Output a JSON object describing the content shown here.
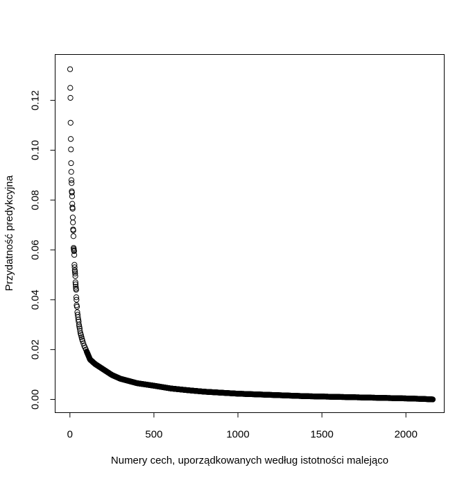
{
  "chart_data": {
    "type": "scatter",
    "title": "",
    "xlabel": "Numery cech, uporządkowanych według istotności malejąco",
    "ylabel": "Przydatność predykcyjna",
    "xlim": [
      -88,
      2228
    ],
    "ylim": [
      -0.0053,
      0.1384
    ],
    "x_ticks": [
      0,
      500,
      1000,
      1500,
      2000
    ],
    "x_tick_labels": [
      "0",
      "500",
      "1000",
      "1500",
      "2000"
    ],
    "y_ticks": [
      0.0,
      0.02,
      0.04,
      0.06,
      0.08,
      0.1,
      0.12
    ],
    "y_tick_labels": [
      "0.00",
      "0.02",
      "0.04",
      "0.06",
      "0.08",
      "0.10",
      "0.12"
    ],
    "grid": false,
    "legend": "none",
    "marker": "open-circle",
    "n_points": 2160,
    "leading_points": [
      [
        1,
        0.1325
      ],
      [
        2,
        0.125
      ],
      [
        3,
        0.121
      ],
      [
        4,
        0.111
      ],
      [
        5,
        0.1045
      ],
      [
        6,
        0.1003
      ],
      [
        7,
        0.0948
      ],
      [
        8,
        0.0913
      ],
      [
        9,
        0.088
      ],
      [
        10,
        0.0868
      ],
      [
        11,
        0.0835
      ],
      [
        12,
        0.083
      ],
      [
        13,
        0.0815
      ],
      [
        14,
        0.0785
      ],
      [
        15,
        0.077
      ],
      [
        16,
        0.0765
      ],
      [
        17,
        0.073
      ],
      [
        18,
        0.071
      ],
      [
        19,
        0.0682
      ],
      [
        20,
        0.0678
      ],
      [
        21,
        0.0655
      ],
      [
        22,
        0.0608
      ],
      [
        23,
        0.0603
      ],
      [
        24,
        0.0598
      ],
      [
        25,
        0.0595
      ],
      [
        26,
        0.058
      ],
      [
        27,
        0.054
      ],
      [
        28,
        0.053
      ],
      [
        29,
        0.0518
      ],
      [
        30,
        0.0512
      ],
      [
        31,
        0.0505
      ],
      [
        32,
        0.0495
      ],
      [
        33,
        0.047
      ],
      [
        34,
        0.0462
      ],
      [
        35,
        0.0452
      ],
      [
        36,
        0.0445
      ],
      [
        37,
        0.044
      ],
      [
        38,
        0.041
      ],
      [
        39,
        0.04
      ],
      [
        40,
        0.0378
      ],
      [
        42,
        0.0372
      ],
      [
        44,
        0.035
      ],
      [
        46,
        0.034
      ],
      [
        48,
        0.033
      ],
      [
        50,
        0.032
      ],
      [
        52,
        0.0312
      ],
      [
        54,
        0.03
      ],
      [
        56,
        0.0292
      ],
      [
        58,
        0.0285
      ],
      [
        60,
        0.0275
      ],
      [
        63,
        0.0265
      ],
      [
        66,
        0.0258
      ],
      [
        69,
        0.025
      ],
      [
        72,
        0.0242
      ],
      [
        75,
        0.0235
      ],
      [
        80,
        0.0225
      ],
      [
        85,
        0.0215
      ],
      [
        90,
        0.0208
      ],
      [
        95,
        0.02
      ],
      [
        100,
        0.0192
      ]
    ],
    "curve_anchors": [
      [
        100,
        0.0192
      ],
      [
        120,
        0.016
      ],
      [
        150,
        0.0142
      ],
      [
        200,
        0.012
      ],
      [
        250,
        0.0098
      ],
      [
        300,
        0.0083
      ],
      [
        400,
        0.0065
      ],
      [
        500,
        0.0055
      ],
      [
        600,
        0.0044
      ],
      [
        700,
        0.0037
      ],
      [
        800,
        0.0031
      ],
      [
        1000,
        0.0023
      ],
      [
        1200,
        0.0018
      ],
      [
        1400,
        0.0013
      ],
      [
        1600,
        0.001
      ],
      [
        1800,
        0.0007
      ],
      [
        2000,
        0.0004
      ],
      [
        2100,
        0.0002
      ],
      [
        2160,
        0.0
      ]
    ]
  }
}
